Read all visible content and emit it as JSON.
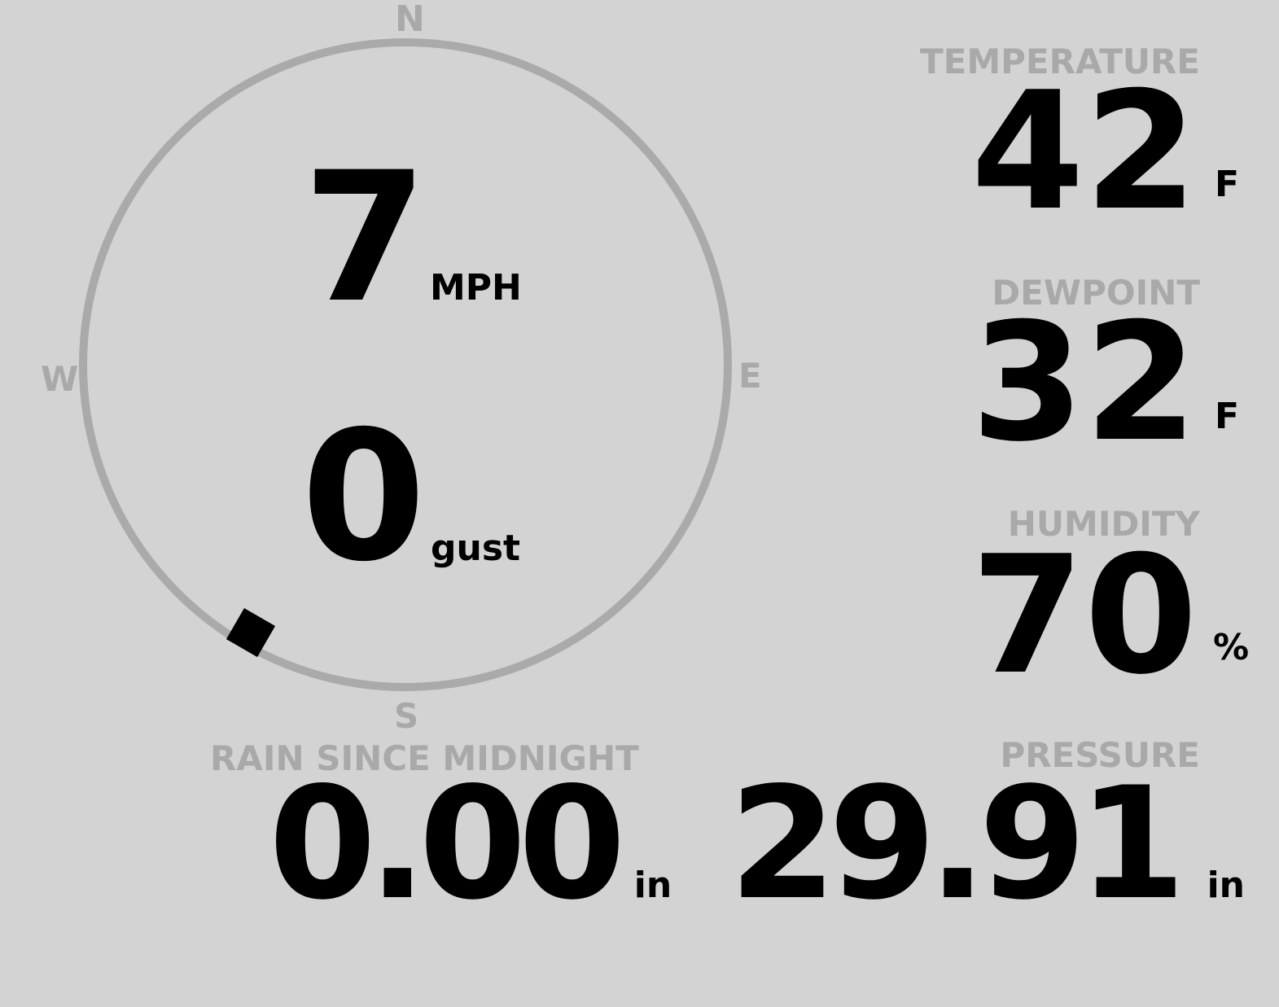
{
  "wind": {
    "speed": "7",
    "speed_unit": "MPH",
    "gust": "0",
    "gust_unit": "gust",
    "direction_degrees": 210,
    "cardinals": {
      "n": "N",
      "e": "E",
      "s": "S",
      "w": "W"
    }
  },
  "temperature": {
    "label": "TEMPERATURE",
    "value": "42",
    "unit": "F"
  },
  "dewpoint": {
    "label": "DEWPOINT",
    "value": "32",
    "unit": "F"
  },
  "humidity": {
    "label": "HUMIDITY",
    "value": "70",
    "unit": "%"
  },
  "rain": {
    "label": "RAIN SINCE MIDNIGHT",
    "value": "0.00",
    "unit": "in"
  },
  "pressure": {
    "label": "PRESSURE",
    "value": "29.91",
    "unit": "in"
  },
  "colors": {
    "background": "#d3d3d3",
    "ring": "#aaaaaa",
    "label": "#a9a9a9",
    "value": "#000000"
  }
}
